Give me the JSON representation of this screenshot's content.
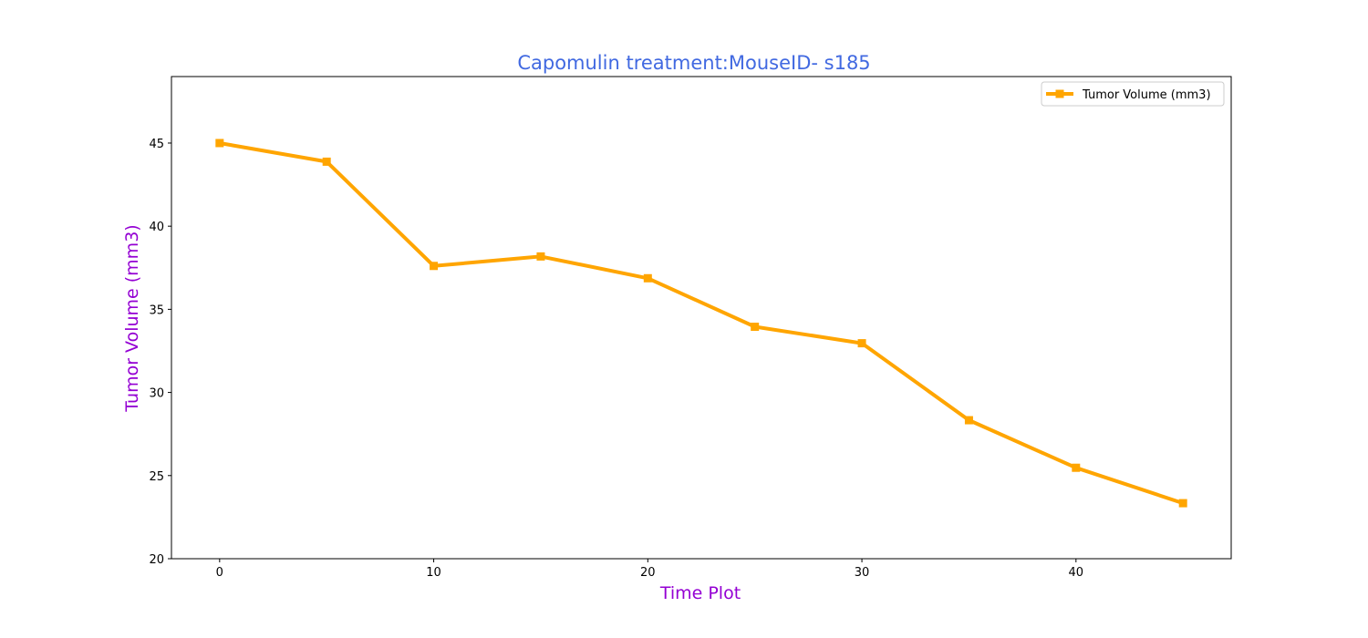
{
  "chart_data": {
    "type": "line",
    "title": "Capomulin treatment:MouseID- s185",
    "xlabel": "Time Plot",
    "ylabel": "Tumor Volume (mm3)",
    "xlim": [
      -2.25,
      47.25
    ],
    "ylim": [
      20,
      49
    ],
    "xticks": [
      0,
      10,
      20,
      30,
      40
    ],
    "yticks": [
      20,
      25,
      30,
      35,
      40,
      45
    ],
    "grid": false,
    "legend_position": "top-right",
    "series": [
      {
        "name": "Tumor Volume (mm3)",
        "marker": "square",
        "color": "#FFA500",
        "x": [
          0,
          5,
          10,
          15,
          20,
          25,
          30,
          35,
          40,
          45
        ],
        "y": [
          45.0,
          43.88,
          37.61,
          38.18,
          36.87,
          33.95,
          32.96,
          28.33,
          25.47,
          23.34
        ]
      }
    ],
    "colors": {
      "title": "#4169E1",
      "axis_labels": "#9400D3",
      "line": "#FFA500"
    }
  }
}
